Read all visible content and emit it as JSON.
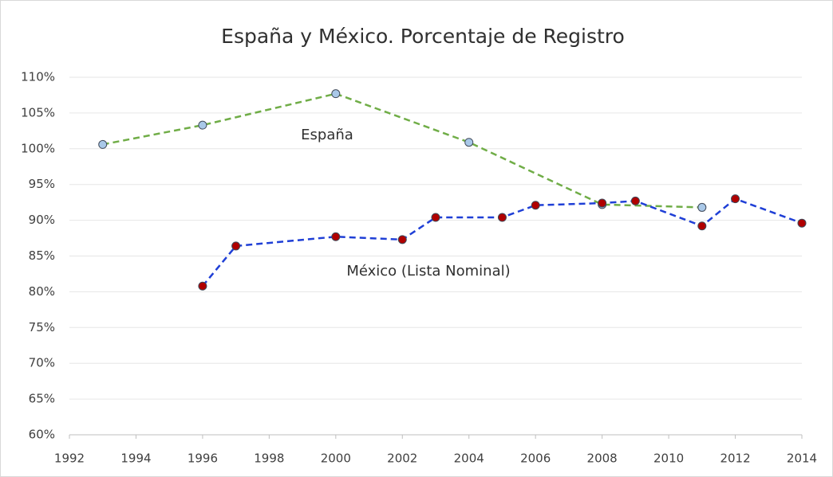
{
  "chart_data": {
    "type": "line",
    "title": "España y México. Porcentaje de Registro",
    "xlim": [
      1992,
      2014
    ],
    "xticks": [
      1992,
      1994,
      1996,
      1998,
      2000,
      2002,
      2004,
      2006,
      2008,
      2010,
      2012,
      2014
    ],
    "ylim": [
      60,
      110
    ],
    "yticks": [
      {
        "value": 60,
        "label": "60%"
      },
      {
        "value": 65,
        "label": "65%"
      },
      {
        "value": 70,
        "label": "70%"
      },
      {
        "value": 75,
        "label": "75%"
      },
      {
        "value": 80,
        "label": "80%"
      },
      {
        "value": 85,
        "label": "85%"
      },
      {
        "value": 90,
        "label": "90%"
      },
      {
        "value": 95,
        "label": "95%"
      },
      {
        "value": 100,
        "label": "100%"
      },
      {
        "value": 105,
        "label": "105%"
      },
      {
        "value": 110,
        "label": "110%"
      }
    ],
    "grid": true,
    "series": [
      {
        "name": "España",
        "color": "#70ad47",
        "marker_color": "#a9c8e8",
        "x": [
          1993,
          1996,
          2000,
          2004,
          2008,
          2011
        ],
        "values": [
          100.6,
          103.3,
          107.7,
          100.9,
          92.2,
          91.8
        ]
      },
      {
        "name": "México (Lista Nominal)",
        "color": "#1f3fd6",
        "marker_color": "#b00000",
        "x": [
          1996,
          1997,
          2000,
          2002,
          2003,
          2005,
          2006,
          2008,
          2009,
          2011,
          2012,
          2014
        ],
        "values": [
          80.8,
          86.4,
          87.7,
          87.3,
          90.4,
          90.4,
          92.1,
          92.4,
          92.7,
          89.2,
          93.0,
          89.6
        ]
      }
    ]
  }
}
